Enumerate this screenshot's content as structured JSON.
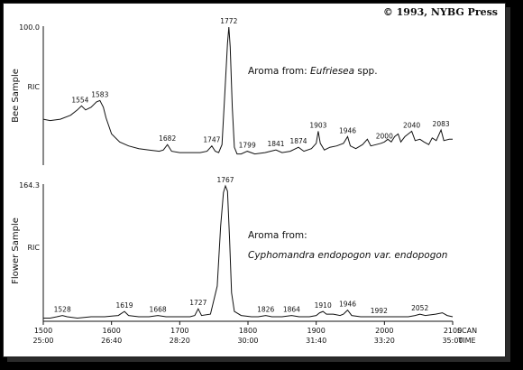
{
  "copyright": "© 1993, NYBG Press",
  "chart_data": [
    {
      "type": "line",
      "ylabel": "Bee Sample",
      "y_axis_marker": "RIC",
      "y_max_label": "100.0",
      "ylim": [
        0,
        100
      ],
      "xlim": [
        1500,
        2100
      ],
      "annotation_prefix": "Aroma from: ",
      "annotation_taxon": "Eufriesea",
      "annotation_suffix": " spp.",
      "points": [
        [
          1500,
          31
        ],
        [
          1510,
          30
        ],
        [
          1525,
          31
        ],
        [
          1540,
          34
        ],
        [
          1550,
          38
        ],
        [
          1556,
          41
        ],
        [
          1562,
          38
        ],
        [
          1570,
          40
        ],
        [
          1578,
          44
        ],
        [
          1583,
          45
        ],
        [
          1588,
          40
        ],
        [
          1592,
          32
        ],
        [
          1600,
          20
        ],
        [
          1612,
          14
        ],
        [
          1625,
          11
        ],
        [
          1640,
          9
        ],
        [
          1655,
          8
        ],
        [
          1670,
          7
        ],
        [
          1676,
          8
        ],
        [
          1682,
          12
        ],
        [
          1688,
          7
        ],
        [
          1700,
          6
        ],
        [
          1715,
          6
        ],
        [
          1730,
          6
        ],
        [
          1740,
          7
        ],
        [
          1747,
          11
        ],
        [
          1752,
          7
        ],
        [
          1757,
          6
        ],
        [
          1762,
          12
        ],
        [
          1766,
          50
        ],
        [
          1770,
          88
        ],
        [
          1772,
          100
        ],
        [
          1774,
          85
        ],
        [
          1777,
          40
        ],
        [
          1780,
          10
        ],
        [
          1784,
          5
        ],
        [
          1790,
          5
        ],
        [
          1799,
          7
        ],
        [
          1810,
          5
        ],
        [
          1825,
          6
        ],
        [
          1841,
          8
        ],
        [
          1850,
          6
        ],
        [
          1862,
          7
        ],
        [
          1874,
          10
        ],
        [
          1882,
          7
        ],
        [
          1893,
          9
        ],
        [
          1900,
          13
        ],
        [
          1903,
          22
        ],
        [
          1906,
          13
        ],
        [
          1912,
          8
        ],
        [
          1920,
          10
        ],
        [
          1930,
          11
        ],
        [
          1940,
          13
        ],
        [
          1946,
          18
        ],
        [
          1950,
          11
        ],
        [
          1958,
          9
        ],
        [
          1968,
          12
        ],
        [
          1975,
          16
        ],
        [
          1980,
          11
        ],
        [
          1988,
          12
        ],
        [
          1995,
          13
        ],
        [
          2000,
          14
        ],
        [
          2005,
          16
        ],
        [
          2010,
          14
        ],
        [
          2015,
          18
        ],
        [
          2020,
          20
        ],
        [
          2024,
          14
        ],
        [
          2030,
          18
        ],
        [
          2040,
          22
        ],
        [
          2045,
          15
        ],
        [
          2052,
          16
        ],
        [
          2058,
          14
        ],
        [
          2065,
          12
        ],
        [
          2070,
          17
        ],
        [
          2076,
          15
        ],
        [
          2083,
          23
        ],
        [
          2087,
          15
        ],
        [
          2095,
          16
        ],
        [
          2100,
          16
        ]
      ],
      "peak_labels": [
        {
          "x": 1554,
          "text": "1554"
        },
        {
          "x": 1583,
          "text": "1583"
        },
        {
          "x": 1682,
          "text": "1682"
        },
        {
          "x": 1747,
          "text": "1747"
        },
        {
          "x": 1772,
          "text": "1772"
        },
        {
          "x": 1799,
          "text": "1799"
        },
        {
          "x": 1841,
          "text": "1841"
        },
        {
          "x": 1874,
          "text": "1874"
        },
        {
          "x": 1903,
          "text": "1903"
        },
        {
          "x": 1946,
          "text": "1946"
        },
        {
          "x": 2000,
          "text": "2000"
        },
        {
          "x": 2040,
          "text": "2040"
        },
        {
          "x": 2083,
          "text": "2083"
        }
      ]
    },
    {
      "type": "line",
      "ylabel": "Flower Sample",
      "y_axis_marker": "RIC",
      "y_max_label": "164.3",
      "ylim": [
        0,
        100
      ],
      "xlim": [
        1500,
        2100
      ],
      "annotation_prefix": "Aroma from:",
      "annotation_taxon_line": "Cyphomandra endopogon var. endopogon",
      "points": [
        [
          1500,
          1
        ],
        [
          1510,
          1
        ],
        [
          1520,
          2
        ],
        [
          1528,
          3
        ],
        [
          1535,
          2
        ],
        [
          1550,
          1
        ],
        [
          1570,
          2
        ],
        [
          1590,
          2
        ],
        [
          1610,
          3
        ],
        [
          1619,
          6
        ],
        [
          1625,
          3
        ],
        [
          1640,
          2
        ],
        [
          1655,
          2
        ],
        [
          1668,
          3
        ],
        [
          1680,
          2
        ],
        [
          1700,
          2
        ],
        [
          1715,
          2
        ],
        [
          1722,
          3
        ],
        [
          1727,
          8
        ],
        [
          1732,
          3
        ],
        [
          1745,
          4
        ],
        [
          1755,
          25
        ],
        [
          1760,
          70
        ],
        [
          1764,
          95
        ],
        [
          1767,
          100
        ],
        [
          1770,
          96
        ],
        [
          1773,
          60
        ],
        [
          1776,
          20
        ],
        [
          1780,
          6
        ],
        [
          1790,
          3
        ],
        [
          1805,
          2
        ],
        [
          1815,
          2
        ],
        [
          1826,
          3
        ],
        [
          1835,
          2
        ],
        [
          1850,
          2
        ],
        [
          1864,
          3
        ],
        [
          1875,
          2
        ],
        [
          1890,
          2
        ],
        [
          1900,
          3
        ],
        [
          1905,
          5
        ],
        [
          1910,
          6
        ],
        [
          1915,
          4
        ],
        [
          1925,
          4
        ],
        [
          1935,
          3
        ],
        [
          1940,
          4
        ],
        [
          1946,
          7
        ],
        [
          1952,
          3
        ],
        [
          1965,
          2
        ],
        [
          1980,
          2
        ],
        [
          1992,
          2
        ],
        [
          2005,
          2
        ],
        [
          2020,
          2
        ],
        [
          2035,
          2
        ],
        [
          2045,
          3
        ],
        [
          2052,
          4
        ],
        [
          2060,
          3
        ],
        [
          2075,
          4
        ],
        [
          2085,
          5
        ],
        [
          2092,
          3
        ],
        [
          2100,
          2
        ]
      ],
      "peak_labels": [
        {
          "x": 1528,
          "text": "1528"
        },
        {
          "x": 1619,
          "text": "1619"
        },
        {
          "x": 1668,
          "text": "1668"
        },
        {
          "x": 1727,
          "text": "1727"
        },
        {
          "x": 1767,
          "text": "1767"
        },
        {
          "x": 1826,
          "text": "1826"
        },
        {
          "x": 1864,
          "text": "1864"
        },
        {
          "x": 1910,
          "text": "1910"
        },
        {
          "x": 1946,
          "text": "1946"
        },
        {
          "x": 1992,
          "text": "1992"
        },
        {
          "x": 2052,
          "text": "2052"
        }
      ]
    }
  ],
  "x_axis": {
    "scan_ticks": [
      "1500",
      "1600",
      "1700",
      "1800",
      "1900",
      "2000",
      "2100"
    ],
    "time_ticks": [
      "25:00",
      "26:40",
      "28:20",
      "30:00",
      "31:40",
      "33:20",
      "35:00"
    ],
    "scan_label": "SCAN",
    "time_label": "TIME"
  }
}
